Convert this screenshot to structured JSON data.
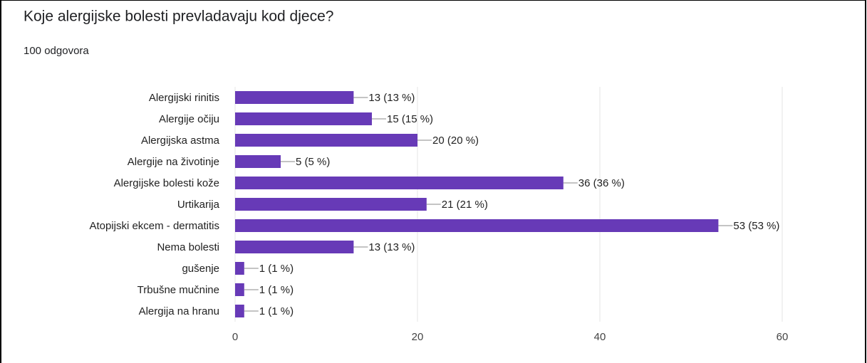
{
  "chart_data": {
    "type": "barh",
    "title": "Koje alergijske bolesti prevladavaju kod djece?",
    "subtitle": "100 odgovora",
    "categories": [
      "Alergijski rinitis",
      "Alergije očiju",
      "Alergijska astma",
      "Alergije na životinje",
      "Alergijske bolesti kože",
      "Urtikarija",
      "Atopijski ekcem - dermatitis",
      "Nema bolesti",
      "gušenje",
      "Trbušne mučnine",
      "Alergija na hranu"
    ],
    "values": [
      13,
      15,
      20,
      5,
      36,
      21,
      53,
      13,
      1,
      1,
      1
    ],
    "value_labels": [
      "13 (13 %)",
      "15 (15 %)",
      "20 (20 %)",
      "5 (5 %)",
      "36 (36 %)",
      "21 (21 %)",
      "53 (53 %)",
      "13 (13 %)",
      "1 (1 %)",
      "1 (1 %)",
      "1 (1 %)"
    ],
    "color": "#673ab7",
    "xlim": [
      0,
      60
    ],
    "xticks": [
      0,
      20,
      40,
      60
    ],
    "grid": true
  }
}
